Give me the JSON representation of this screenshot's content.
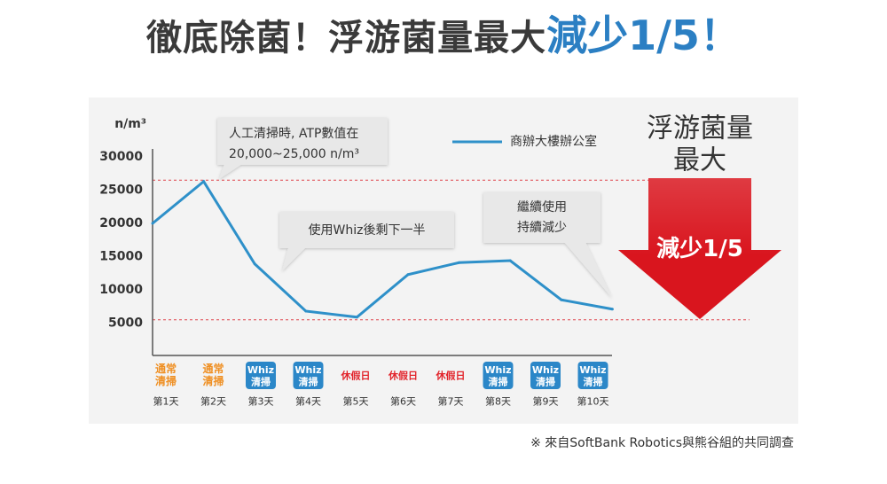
{
  "title": {
    "main": "徹底除菌！浮游菌量最大",
    "highlight": "減少1/5！",
    "main_color": "#3a3a3a",
    "highlight_color": "#2b7fc3"
  },
  "chart_data": {
    "type": "line",
    "ylabel": "n/m³",
    "ylim": [
      0,
      30000
    ],
    "yticks": [
      5000,
      10000,
      15000,
      20000,
      25000,
      30000
    ],
    "categories": [
      "第1天",
      "第2天",
      "第3天",
      "第4天",
      "第5天",
      "第6天",
      "第7天",
      "第8天",
      "第9天",
      "第10天"
    ],
    "category_tags": [
      {
        "lines": [
          "通常",
          "清掃"
        ],
        "color": "#ef8f22"
      },
      {
        "lines": [
          "通常",
          "清掃"
        ],
        "color": "#ef8f22"
      },
      {
        "lines": [
          "Whiz",
          "清掃"
        ],
        "color": "#ffffff",
        "fill": "#2b87c8"
      },
      {
        "lines": [
          "Whiz",
          "清掃"
        ],
        "color": "#ffffff",
        "fill": "#2b87c8"
      },
      {
        "lines": [
          "休假日"
        ],
        "color": "#e2242b"
      },
      {
        "lines": [
          "休假日"
        ],
        "color": "#e2242b"
      },
      {
        "lines": [
          "休假日"
        ],
        "color": "#e2242b"
      },
      {
        "lines": [
          "Whiz",
          "清掃"
        ],
        "color": "#ffffff",
        "fill": "#2b87c8"
      },
      {
        "lines": [
          "Whiz",
          "清掃"
        ],
        "color": "#ffffff",
        "fill": "#2b87c8"
      },
      {
        "lines": [
          "Whiz",
          "清掃"
        ],
        "color": "#ffffff",
        "fill": "#2b87c8"
      }
    ],
    "series": [
      {
        "name": "商辦大樓辦公室",
        "color": "#2e90c9",
        "values": [
          20000,
          26300,
          13900,
          6800,
          5900,
          12300,
          14100,
          14400,
          8500,
          7100
        ]
      }
    ],
    "reference_lines": [
      {
        "value": 26500,
        "color": "#e0454c"
      },
      {
        "value": 5500,
        "color": "#e0454c"
      }
    ],
    "grid": false,
    "legend_position": "top-right",
    "annotations": [
      {
        "lines": [
          "人工清掃時, ATP數值在",
          "20,000~25,000 n/m³"
        ]
      },
      {
        "lines": [
          "使用Whiz後剩下一半"
        ]
      },
      {
        "lines": [
          "繼續使用",
          "持續減少"
        ]
      }
    ]
  },
  "callout": {
    "heading": [
      "浮游菌量",
      "最大"
    ],
    "arrow_label": "減少1/5",
    "arrow_color": "#d9151e"
  },
  "footnote": "※ 來自SoftBank Robotics與熊谷組的共同調查"
}
